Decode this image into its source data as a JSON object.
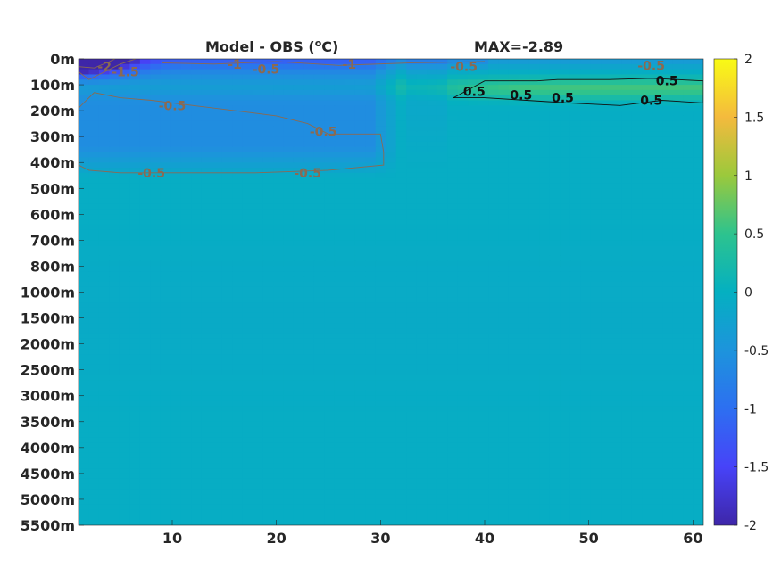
{
  "chart_data": {
    "type": "heatmap",
    "title": "Model - OBS (",
    "title_unit_sup": "o",
    "title_unit_tail": "C)",
    "max_label": "MAX=-2.89",
    "xlabel": "",
    "ylabel": "",
    "x_range": [
      1,
      61
    ],
    "x_ticks": [
      "10",
      "20",
      "30",
      "40",
      "50",
      "60"
    ],
    "x_tick_values": [
      10,
      20,
      30,
      40,
      50,
      60
    ],
    "y_tick_labels": [
      "0m",
      "100m",
      "200m",
      "300m",
      "400m",
      "500m",
      "600m",
      "700m",
      "800m",
      "1000m",
      "1500m",
      "2000m",
      "2500m",
      "3000m",
      "3500m",
      "4000m",
      "4500m",
      "5000m",
      "5500m"
    ],
    "y_reversed": true,
    "colorbar": {
      "min": -2,
      "max": 2,
      "ticks": [
        "2",
        "1.5",
        "1",
        "0.5",
        "0",
        "-0.5",
        "-1",
        "-1.5",
        "-2"
      ],
      "tick_values": [
        2,
        1.5,
        1,
        0.5,
        0,
        -0.5,
        -1,
        -1.5,
        -2
      ],
      "colormap": "parula"
    },
    "field_summary": {
      "surface_min_near_x1_depth_0m": -2.89,
      "cold_band_depth_0_to_400m_x_1_to_32": -0.6,
      "warm_band_depth_100m_x_37_to_61": 0.55,
      "deep_ocean_value": -0.05
    },
    "contours": [
      {
        "level": -2,
        "label": "-2"
      },
      {
        "level": -1.5,
        "label": "-1.5"
      },
      {
        "level": -1,
        "label": "-1"
      },
      {
        "level": -0.5,
        "label": "-0.5"
      },
      {
        "level": 0.5,
        "label": "0.5"
      }
    ],
    "contour_labels": [
      {
        "text": "-2",
        "x": 3.5,
        "depth_index": 0.3,
        "color": "#8a6a52"
      },
      {
        "text": "-1.5",
        "x": 5.5,
        "depth_index": 0.5,
        "color": "#8a6a52"
      },
      {
        "text": "-1",
        "x": 16.0,
        "depth_index": 0.2,
        "color": "#8a6a52"
      },
      {
        "text": "-0.5",
        "x": 19.0,
        "depth_index": 0.4,
        "color": "#8a6a52"
      },
      {
        "text": "-1",
        "x": 27.0,
        "depth_index": 0.2,
        "color": "#8a6a52"
      },
      {
        "text": "-0.5",
        "x": 38.0,
        "depth_index": 0.3,
        "color": "#8a6a52"
      },
      {
        "text": "-0.5",
        "x": 56.0,
        "depth_index": 0.25,
        "color": "#8a6a52"
      },
      {
        "text": "-0.5",
        "x": 10.0,
        "depth_index": 1.8,
        "color": "#8a6a52"
      },
      {
        "text": "-0.5",
        "x": 24.5,
        "depth_index": 2.8,
        "color": "#8a6a52"
      },
      {
        "text": "-0.5",
        "x": 8.0,
        "depth_index": 4.4,
        "color": "#8a6a52"
      },
      {
        "text": "-0.5",
        "x": 23.0,
        "depth_index": 4.4,
        "color": "#8a6a52"
      },
      {
        "text": "0.5",
        "x": 39.0,
        "depth_index": 1.25,
        "color": "#111111"
      },
      {
        "text": "0.5",
        "x": 43.5,
        "depth_index": 1.4,
        "color": "#111111"
      },
      {
        "text": "0.5",
        "x": 47.5,
        "depth_index": 1.5,
        "color": "#111111"
      },
      {
        "text": "0.5",
        "x": 57.5,
        "depth_index": 0.85,
        "color": "#111111"
      },
      {
        "text": "0.5",
        "x": 56.0,
        "depth_index": 1.6,
        "color": "#111111"
      }
    ]
  }
}
